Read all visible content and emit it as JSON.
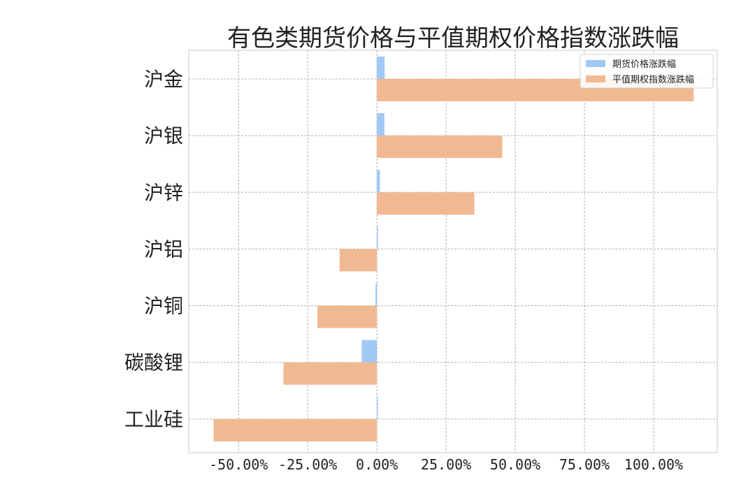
{
  "chart_data": {
    "type": "bar",
    "orientation": "horizontal",
    "title": "有色类期货价格与平值期权价格指数涨跌幅",
    "categories": [
      "沪金",
      "沪银",
      "沪锌",
      "沪铝",
      "沪铜",
      "碳酸锂",
      "工业硅"
    ],
    "series": [
      {
        "name": "期货价格涨跌幅",
        "color": "#a1c9f4",
        "values": [
          2.8,
          2.7,
          1.1,
          0.0,
          -0.5,
          -5.5,
          0.0
        ]
      },
      {
        "name": "平值期权指数涨跌幅",
        "color": "#f1b992",
        "values": [
          114.5,
          45.3,
          35.2,
          -13.5,
          -21.5,
          -33.8,
          -59.0
        ]
      }
    ],
    "xlim": [
      -68,
      123
    ],
    "xticks": [
      -50,
      -25,
      0,
      25,
      50,
      75,
      100
    ],
    "xtick_labels": [
      "-50.00%",
      "-25.00%",
      "0.00%",
      "25.00%",
      "50.00%",
      "75.00%",
      "100.00%"
    ],
    "grid": true,
    "legend_position": "top-right"
  }
}
